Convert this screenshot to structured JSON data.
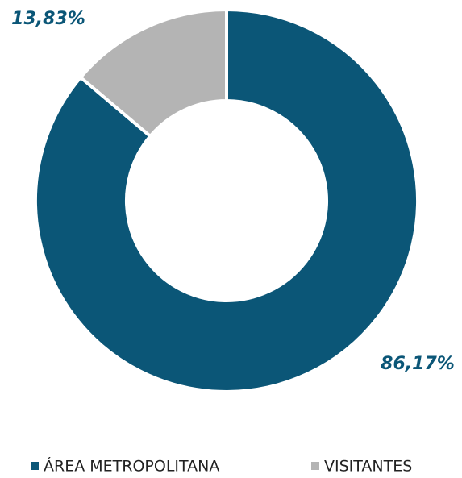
{
  "chart_data": {
    "type": "donut",
    "categories": [
      "ÁREA METROPOLITANA",
      "VISITANTES"
    ],
    "values": [
      86.17,
      13.83
    ],
    "value_labels": [
      "86,17%",
      "13,83%"
    ],
    "colors": [
      "#0b5677",
      "#b4b4b4"
    ]
  }
}
